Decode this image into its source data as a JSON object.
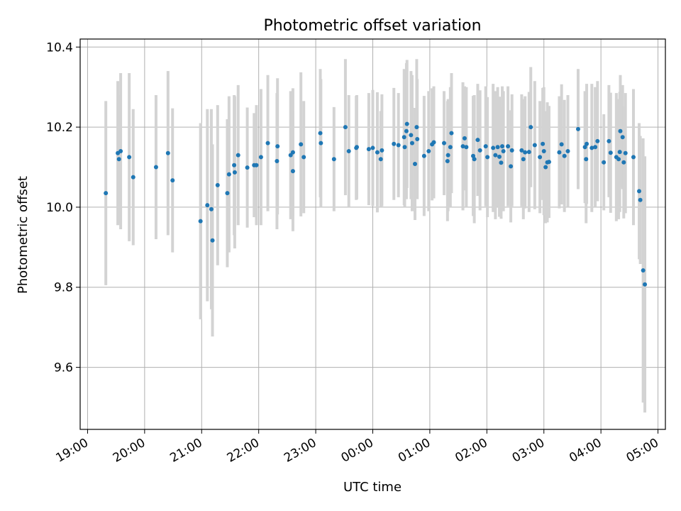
{
  "chart_data": {
    "type": "scatter",
    "title": "Photometric offset variation",
    "xlabel": "UTC time",
    "ylabel": "Photometric offset",
    "x_unit": "hours after 19:00 UTC",
    "xlim": [
      -0.13,
      10.13
    ],
    "ylim": [
      9.445,
      10.42
    ],
    "grid": true,
    "colors": {
      "points": "#1f77b4",
      "errorbars": "#d3d3d3"
    },
    "x_ticks": [
      {
        "value": 0,
        "label": "19:00"
      },
      {
        "value": 1,
        "label": "20:00"
      },
      {
        "value": 2,
        "label": "21:00"
      },
      {
        "value": 3,
        "label": "22:00"
      },
      {
        "value": 4,
        "label": "23:00"
      },
      {
        "value": 5,
        "label": "00:00"
      },
      {
        "value": 6,
        "label": "01:00"
      },
      {
        "value": 7,
        "label": "02:00"
      },
      {
        "value": 8,
        "label": "03:00"
      },
      {
        "value": 9,
        "label": "04:00"
      },
      {
        "value": 10,
        "label": "05:00"
      }
    ],
    "y_ticks": [
      {
        "value": 9.6,
        "label": "9.6"
      },
      {
        "value": 9.8,
        "label": "9.8"
      },
      {
        "value": 10.0,
        "label": "10.0"
      },
      {
        "value": 10.2,
        "label": "10.2"
      },
      {
        "value": 10.4,
        "label": "10.4"
      }
    ],
    "points": [
      [
        0.32,
        10.035,
        0.23
      ],
      [
        0.53,
        10.135,
        0.18
      ],
      [
        0.55,
        10.12,
        0.16
      ],
      [
        0.58,
        10.14,
        0.195
      ],
      [
        0.73,
        10.125,
        0.21
      ],
      [
        0.8,
        10.075,
        0.17
      ],
      [
        1.2,
        10.1,
        0.18
      ],
      [
        1.41,
        10.135,
        0.205
      ],
      [
        1.49,
        10.067,
        0.18
      ],
      [
        1.98,
        9.965,
        0.245
      ],
      [
        2.1,
        10.005,
        0.24
      ],
      [
        2.17,
        9.995,
        0.25
      ],
      [
        2.19,
        9.917,
        0.24
      ],
      [
        2.28,
        10.055,
        0.2
      ],
      [
        2.45,
        10.035,
        0.185
      ],
      [
        2.48,
        10.082,
        0.195
      ],
      [
        2.57,
        10.105,
        0.175
      ],
      [
        2.58,
        10.087,
        0.19
      ],
      [
        2.64,
        10.13,
        0.175
      ],
      [
        2.8,
        10.099,
        0.15
      ],
      [
        2.92,
        10.105,
        0.13
      ],
      [
        2.96,
        10.105,
        0.15
      ],
      [
        3.04,
        10.125,
        0.17
      ],
      [
        3.16,
        10.16,
        0.17
      ],
      [
        3.33,
        10.152,
        0.17
      ],
      [
        3.32,
        10.115,
        0.17
      ],
      [
        3.56,
        10.13,
        0.16
      ],
      [
        3.6,
        10.137,
        0.16
      ],
      [
        3.6,
        10.09,
        0.15
      ],
      [
        3.74,
        10.157,
        0.18
      ],
      [
        3.79,
        10.125,
        0.14
      ],
      [
        4.08,
        10.185,
        0.16
      ],
      [
        4.09,
        10.16,
        0.16
      ],
      [
        4.32,
        10.12,
        0.13
      ],
      [
        4.52,
        10.2,
        0.17
      ],
      [
        4.58,
        10.14,
        0.14
      ],
      [
        4.71,
        10.148,
        0.13
      ],
      [
        4.72,
        10.15,
        0.13
      ],
      [
        4.93,
        10.145,
        0.14
      ],
      [
        5.0,
        10.148,
        0.145
      ],
      [
        5.08,
        10.137,
        0.15
      ],
      [
        5.16,
        10.142,
        0.14
      ],
      [
        5.14,
        10.12,
        0.12
      ],
      [
        5.37,
        10.158,
        0.14
      ],
      [
        5.45,
        10.155,
        0.13
      ],
      [
        5.55,
        10.175,
        0.17
      ],
      [
        5.56,
        10.15,
        0.15
      ],
      [
        5.59,
        10.19,
        0.17
      ],
      [
        5.6,
        10.208,
        0.16
      ],
      [
        5.67,
        10.18,
        0.16
      ],
      [
        5.69,
        10.16,
        0.17
      ],
      [
        5.74,
        10.108,
        0.14
      ],
      [
        5.77,
        10.2,
        0.17
      ],
      [
        5.78,
        10.17,
        0.15
      ],
      [
        5.9,
        10.128,
        0.15
      ],
      [
        5.98,
        10.14,
        0.15
      ],
      [
        6.04,
        10.157,
        0.14
      ],
      [
        6.07,
        10.162,
        0.14
      ],
      [
        6.25,
        10.16,
        0.13
      ],
      [
        6.31,
        10.115,
        0.15
      ],
      [
        6.32,
        10.13,
        0.14
      ],
      [
        6.36,
        10.15,
        0.15
      ],
      [
        6.38,
        10.185,
        0.15
      ],
      [
        6.58,
        10.152,
        0.16
      ],
      [
        6.61,
        10.172,
        0.13
      ],
      [
        6.64,
        10.15,
        0.15
      ],
      [
        6.76,
        10.128,
        0.15
      ],
      [
        6.78,
        10.12,
        0.16
      ],
      [
        6.84,
        10.168,
        0.14
      ],
      [
        6.88,
        10.142,
        0.15
      ],
      [
        6.98,
        10.152,
        0.15
      ],
      [
        7.01,
        10.125,
        0.15
      ],
      [
        7.11,
        10.148,
        0.16
      ],
      [
        7.15,
        10.13,
        0.16
      ],
      [
        7.19,
        10.15,
        0.15
      ],
      [
        7.22,
        10.126,
        0.15
      ],
      [
        7.25,
        10.111,
        0.14
      ],
      [
        7.27,
        10.152,
        0.15
      ],
      [
        7.29,
        10.14,
        0.15
      ],
      [
        7.37,
        10.152,
        0.15
      ],
      [
        7.42,
        10.102,
        0.14
      ],
      [
        7.44,
        10.142,
        0.14
      ],
      [
        7.61,
        10.142,
        0.14
      ],
      [
        7.64,
        10.12,
        0.15
      ],
      [
        7.67,
        10.137,
        0.14
      ],
      [
        7.74,
        10.138,
        0.15
      ],
      [
        7.77,
        10.2,
        0.15
      ],
      [
        7.84,
        10.155,
        0.16
      ],
      [
        7.93,
        10.125,
        0.14
      ],
      [
        7.98,
        10.158,
        0.14
      ],
      [
        8.0,
        10.14,
        0.16
      ],
      [
        8.03,
        10.1,
        0.14
      ],
      [
        8.06,
        10.112,
        0.15
      ],
      [
        8.09,
        10.113,
        0.14
      ],
      [
        8.27,
        10.137,
        0.14
      ],
      [
        8.31,
        10.157,
        0.15
      ],
      [
        8.36,
        10.128,
        0.14
      ],
      [
        8.42,
        10.14,
        0.14
      ],
      [
        8.6,
        10.195,
        0.15
      ],
      [
        8.72,
        10.15,
        0.14
      ],
      [
        8.75,
        10.158,
        0.15
      ],
      [
        8.74,
        10.12,
        0.16
      ],
      [
        8.84,
        10.148,
        0.16
      ],
      [
        8.9,
        10.15,
        0.15
      ],
      [
        8.94,
        10.165,
        0.15
      ],
      [
        9.05,
        10.112,
        0.12
      ],
      [
        9.14,
        10.165,
        0.14
      ],
      [
        9.17,
        10.136,
        0.15
      ],
      [
        9.27,
        10.125,
        0.16
      ],
      [
        9.31,
        10.12,
        0.15
      ],
      [
        9.33,
        10.138,
        0.15
      ],
      [
        9.34,
        10.19,
        0.14
      ],
      [
        9.38,
        10.175,
        0.13
      ],
      [
        9.4,
        10.112,
        0.14
      ],
      [
        9.43,
        10.135,
        0.15
      ],
      [
        9.57,
        10.125,
        0.17
      ],
      [
        9.67,
        10.04,
        0.17
      ],
      [
        9.69,
        10.018,
        0.16
      ],
      [
        9.74,
        9.842,
        0.33
      ],
      [
        9.77,
        9.807,
        0.32
      ]
    ]
  }
}
